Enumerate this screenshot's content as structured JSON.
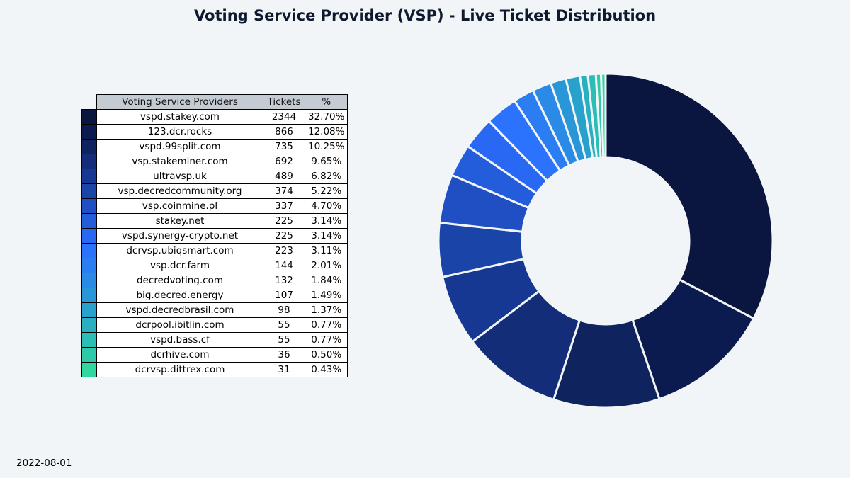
{
  "title": "Voting Service Provider (VSP) - Live Ticket Distribution",
  "date": "2022-08-01",
  "table": {
    "headers": [
      "Voting Service Providers",
      "Tickets",
      "%"
    ]
  },
  "chart_data": {
    "type": "pie",
    "variant": "donut",
    "title": "Voting Service Provider (VSP) - Live Ticket Distribution",
    "start": "12 o'clock, clockwise",
    "series": [
      {
        "name": "vspd.stakey.com",
        "tickets": "2344",
        "percent": "32.70%",
        "value": 2344,
        "color": "#0a1540"
      },
      {
        "name": "123.dcr.rocks",
        "tickets": "866",
        "percent": "12.08%",
        "value": 866,
        "color": "#0c1b4f"
      },
      {
        "name": "vspd.99split.com",
        "tickets": "735",
        "percent": "10.25%",
        "value": 735,
        "color": "#0f235f"
      },
      {
        "name": "vsp.stakeminer.com",
        "tickets": "692",
        "percent": "9.65%",
        "value": 692,
        "color": "#132d78"
      },
      {
        "name": "ultravsp.uk",
        "tickets": "489",
        "percent": "6.82%",
        "value": 489,
        "color": "#173892"
      },
      {
        "name": "vsp.decredcommunity.org",
        "tickets": "374",
        "percent": "5.22%",
        "value": 374,
        "color": "#1b44a9"
      },
      {
        "name": "vsp.coinmine.pl",
        "tickets": "337",
        "percent": "4.70%",
        "value": 337,
        "color": "#1f4fc3"
      },
      {
        "name": "stakey.net",
        "tickets": "225",
        "percent": "3.14%",
        "value": 225,
        "color": "#245ddb"
      },
      {
        "name": "vspd.synergy-crypto.net",
        "tickets": "225",
        "percent": "3.14%",
        "value": 225,
        "color": "#2968f2"
      },
      {
        "name": "dcrvsp.ubiqsmart.com",
        "tickets": "223",
        "percent": "3.11%",
        "value": 223,
        "color": "#2b72fc"
      },
      {
        "name": "vsp.dcr.farm",
        "tickets": "144",
        "percent": "2.01%",
        "value": 144,
        "color": "#2a7ef2"
      },
      {
        "name": "decredvoting.com",
        "tickets": "132",
        "percent": "1.84%",
        "value": 132,
        "color": "#2a8ae5"
      },
      {
        "name": "big.decred.energy",
        "tickets": "107",
        "percent": "1.49%",
        "value": 107,
        "color": "#2996d8"
      },
      {
        "name": "vspd.decredbrasil.com",
        "tickets": "98",
        "percent": "1.37%",
        "value": 98,
        "color": "#28a2cc"
      },
      {
        "name": "dcrpool.ibitlin.com",
        "tickets": "55",
        "percent": "0.77%",
        "value": 55,
        "color": "#28b0c0"
      },
      {
        "name": "vspd.bass.cf",
        "tickets": "55",
        "percent": "0.77%",
        "value": 55,
        "color": "#2bbdb6"
      },
      {
        "name": "dcrhive.com",
        "tickets": "36",
        "percent": "0.50%",
        "value": 36,
        "color": "#2dc9a8"
      },
      {
        "name": "dcrvsp.dittrex.com",
        "tickets": "31",
        "percent": "0.43%",
        "value": 31,
        "color": "#30d8a0"
      }
    ]
  }
}
